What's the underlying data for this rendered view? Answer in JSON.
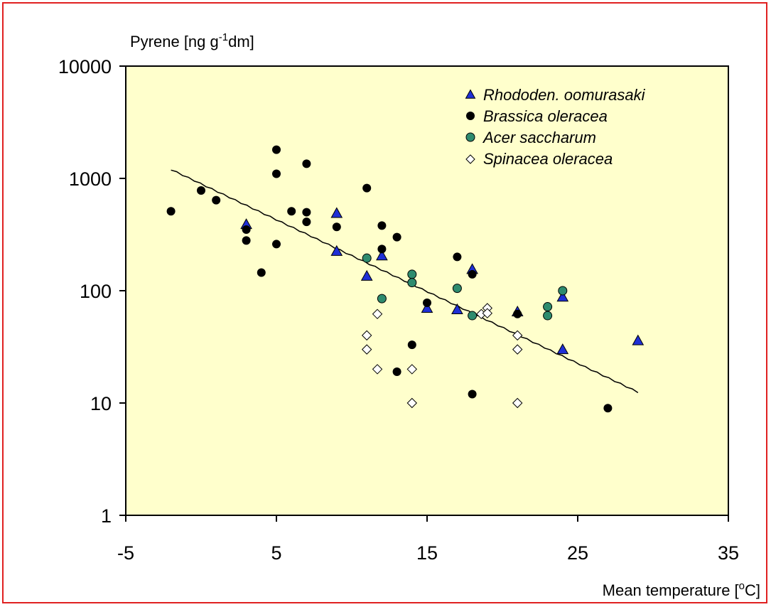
{
  "chart_data": {
    "type": "scatter",
    "ylabel_main": "Pyrene [ng g",
    "ylabel_sup": "-1",
    "ylabel_tail": "dm]",
    "xlabel_main": "Mean temperature [",
    "xlabel_sup": "o",
    "xlabel_tail": "C]",
    "xlim": [
      -5,
      35
    ],
    "ylim": [
      1,
      10000
    ],
    "y_scale": "log",
    "x_ticks": [
      "-5",
      "5",
      "15",
      "25",
      "35"
    ],
    "y_ticks": [
      "1",
      "10",
      "100",
      "1000",
      "10000"
    ],
    "grid": false,
    "legend_position": "top-right",
    "colors": {
      "plot_bg": "#ffffcc",
      "frame": "#e02020",
      "triangle": "#1f2fd6",
      "circle_black": "#000000",
      "circle_green": "#2e8b6e",
      "diamond": "#ffffff"
    },
    "series": [
      {
        "name": "Rhododen. oomurasaki",
        "marker": "triangle",
        "points": [
          [
            3,
            390
          ],
          [
            9,
            490
          ],
          [
            9,
            225
          ],
          [
            11,
            135
          ],
          [
            12,
            205
          ],
          [
            15,
            70
          ],
          [
            17,
            68
          ],
          [
            18,
            155
          ],
          [
            21,
            65
          ],
          [
            24,
            88
          ],
          [
            24,
            30
          ],
          [
            29,
            36
          ]
        ]
      },
      {
        "name": "Brassica oleracea",
        "marker": "circle-black",
        "points": [
          [
            -2,
            510
          ],
          [
            0,
            780
          ],
          [
            1,
            640
          ],
          [
            3,
            350
          ],
          [
            3,
            280
          ],
          [
            4,
            145
          ],
          [
            5,
            1800
          ],
          [
            5,
            1100
          ],
          [
            5,
            260
          ],
          [
            6,
            510
          ],
          [
            7,
            1350
          ],
          [
            7,
            500
          ],
          [
            7,
            410
          ],
          [
            9,
            370
          ],
          [
            11,
            820
          ],
          [
            12,
            380
          ],
          [
            12,
            235
          ],
          [
            13,
            300
          ],
          [
            13,
            19
          ],
          [
            14,
            33
          ],
          [
            15,
            78
          ],
          [
            17,
            200
          ],
          [
            18,
            140
          ],
          [
            18,
            12
          ],
          [
            21,
            62
          ],
          [
            27,
            9
          ]
        ]
      },
      {
        "name": "Acer saccharum",
        "marker": "circle-green",
        "points": [
          [
            11,
            195
          ],
          [
            12,
            85
          ],
          [
            14,
            140
          ],
          [
            14,
            118
          ],
          [
            17,
            105
          ],
          [
            18,
            60
          ],
          [
            23,
            72
          ],
          [
            23,
            60
          ],
          [
            24,
            100
          ]
        ]
      },
      {
        "name": "Spinacea oleracea",
        "marker": "diamond",
        "points": [
          [
            11,
            40
          ],
          [
            11,
            30
          ],
          [
            11.7,
            62
          ],
          [
            11.7,
            20
          ],
          [
            14,
            20
          ],
          [
            14,
            10
          ],
          [
            18.6,
            62
          ],
          [
            19,
            70
          ],
          [
            19,
            63
          ],
          [
            21,
            40
          ],
          [
            21,
            30
          ],
          [
            21,
            10
          ]
        ]
      }
    ],
    "trendline": {
      "x": [
        -2,
        29
      ],
      "y": [
        1200,
        12.5
      ]
    }
  }
}
